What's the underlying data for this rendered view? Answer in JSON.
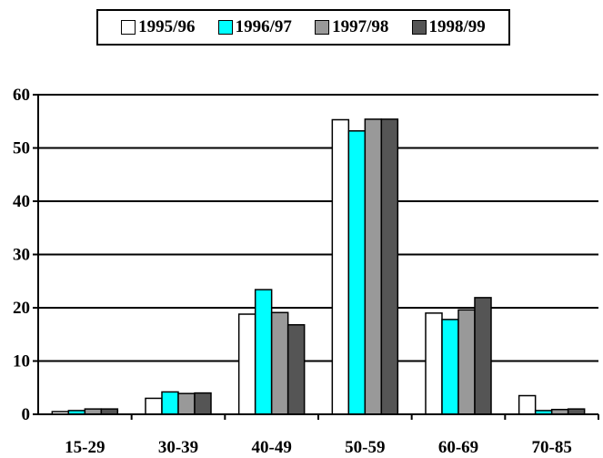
{
  "chart_data": {
    "type": "bar",
    "categories": [
      "15-29",
      "30-39",
      "40-49",
      "50-59",
      "60-69",
      "70-85"
    ],
    "series": [
      {
        "name": "1995/96",
        "color": "#ffffff",
        "values": [
          0.5,
          3.0,
          18.8,
          55.3,
          19.0,
          3.5
        ]
      },
      {
        "name": "1996/97",
        "color": "#00ffff",
        "values": [
          0.7,
          4.2,
          23.4,
          53.2,
          17.8,
          0.7
        ]
      },
      {
        "name": "1997/98",
        "color": "#999999",
        "values": [
          1.0,
          3.9,
          19.1,
          55.4,
          19.6,
          0.9
        ]
      },
      {
        "name": "1998/99",
        "color": "#555555",
        "values": [
          1.0,
          4.0,
          16.8,
          55.4,
          21.9,
          1.0
        ]
      }
    ],
    "ylim": [
      0,
      60
    ],
    "yticks": [
      0,
      10,
      20,
      30,
      40,
      50,
      60
    ],
    "grid": true,
    "legend": "top"
  }
}
